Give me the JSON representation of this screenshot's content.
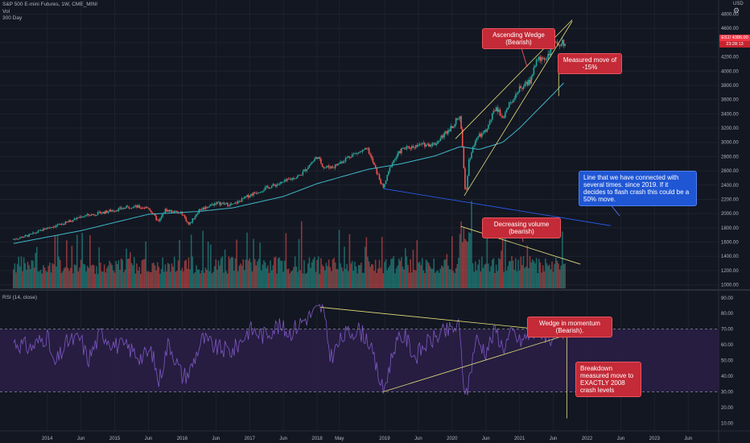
{
  "header": {
    "symbol_line": "S&P 500 E-mini Futures, 1W, CME_MINI",
    "volume_label": "Vol",
    "ma_label": "300 Day",
    "rsi_label": "RSI (14, close)"
  },
  "currency": "USD",
  "price_tag": {
    "symbol": "ES1!",
    "price": "4386.00",
    "countdown": "23:28:13"
  },
  "annotations": {
    "ascending_wedge": "Ascending Wedge (Bearish)",
    "measured_move": "Measured move of -15%",
    "trendline_note": "Line that we have connected with several times. since 2019. If it decides to flash crash this could be a 50% move.",
    "decreasing_volume": "Decreasing volume (bearish)",
    "wedge_momentum": "Wedge in momentum (Bearish).",
    "breakdown_note": "Breakdown measured move to EXACTLY 2008 crash levels"
  },
  "colors": {
    "background": "#131722",
    "up": "#26a69a",
    "down": "#ef5350",
    "ma": "#3fb8c8",
    "rsi_line": "#7e57c2",
    "rsi_band": "#2a1f47",
    "wedge_line": "#e6e07a",
    "support_line": "#2962ff"
  },
  "chart_data": [
    {
      "type": "candlestick",
      "series": [
        {
          "name": "S&P 500 E-mini Futures",
          "x": [
            2013.5,
            2013.75,
            2014.0,
            2014.25,
            2014.5,
            2014.75,
            2015.0,
            2015.25,
            2015.5,
            2015.65,
            2015.75,
            2016.0,
            2016.1,
            2016.25,
            2016.5,
            2016.75,
            2017.0,
            2017.25,
            2017.5,
            2017.75,
            2018.0,
            2018.1,
            2018.25,
            2018.5,
            2018.75,
            2018.98,
            2019.1,
            2019.25,
            2019.5,
            2019.75,
            2020.0,
            2020.12,
            2020.2,
            2020.25,
            2020.35,
            2020.5,
            2020.65,
            2020.75,
            2020.9,
            2021.0,
            2021.15,
            2021.25,
            2021.4,
            2021.5,
            2021.6,
            2021.68
          ],
          "values": [
            1640,
            1700,
            1800,
            1860,
            1960,
            2000,
            2050,
            2100,
            2080,
            1880,
            2050,
            2000,
            1840,
            2050,
            2150,
            2120,
            2260,
            2360,
            2440,
            2540,
            2800,
            2650,
            2660,
            2820,
            2900,
            2350,
            2700,
            2900,
            2960,
            2980,
            3230,
            3380,
            2250,
            2750,
            3050,
            3150,
            3500,
            3350,
            3620,
            3750,
            3850,
            4150,
            4200,
            4350,
            4400,
            4386
          ]
        }
      ],
      "moving_average": {
        "name": "300 Day",
        "x": [
          2013.5,
          2014.5,
          2015.5,
          2016.25,
          2016.75,
          2017.5,
          2018.0,
          2018.75,
          2019.25,
          2019.75,
          2020.12,
          2020.4,
          2020.75,
          2021.0,
          2021.25,
          2021.5,
          2021.68
        ],
        "values": [
          1580,
          1760,
          1990,
          2030,
          2080,
          2240,
          2420,
          2620,
          2700,
          2810,
          2940,
          2900,
          3000,
          3200,
          3440,
          3680,
          3860
        ]
      },
      "x_ticks": [
        {
          "v": 2014.0,
          "label": "2014"
        },
        {
          "v": 2014.5,
          "label": "Jun"
        },
        {
          "v": 2015.0,
          "label": "2015"
        },
        {
          "v": 2015.5,
          "label": "Jun"
        },
        {
          "v": 2016.0,
          "label": "2016"
        },
        {
          "v": 2016.5,
          "label": "Jun"
        },
        {
          "v": 2017.0,
          "label": "2017"
        },
        {
          "v": 2017.5,
          "label": "Jun"
        },
        {
          "v": 2018.0,
          "label": "2018"
        },
        {
          "v": 2018.33,
          "label": "May"
        },
        {
          "v": 2019.0,
          "label": "2019"
        },
        {
          "v": 2019.5,
          "label": "Jun"
        },
        {
          "v": 2020.0,
          "label": "2020"
        },
        {
          "v": 2020.5,
          "label": "Jun"
        },
        {
          "v": 2021.0,
          "label": "2021"
        },
        {
          "v": 2021.5,
          "label": "Jun"
        },
        {
          "v": 2022.0,
          "label": "2022"
        },
        {
          "v": 2022.5,
          "label": "Jun"
        },
        {
          "v": 2023.0,
          "label": "2023"
        },
        {
          "v": 2023.5,
          "label": "Jun"
        }
      ],
      "y_ticks": [
        1000,
        1200,
        1400,
        1600,
        1800,
        2000,
        2200,
        2400,
        2600,
        2800,
        3000,
        3200,
        3400,
        3600,
        3800,
        4000,
        4200,
        4400,
        4600,
        4800
      ],
      "y_tick_labels": [
        "1000.00",
        "1200.00",
        "1400.00",
        "1600.00",
        "1800.00",
        "2000.00",
        "2200.00",
        "2400.00",
        "2600.00",
        "2800.00",
        "3000.00",
        "3200.00",
        "3400.00",
        "3600.00",
        "3800.00",
        "4000.00",
        "4200.00",
        "4400.00",
        "4600.00",
        "4800.00"
      ],
      "ylim": [
        950,
        4840
      ],
      "xlim": [
        2013.3,
        2023.95
      ]
    },
    {
      "type": "line",
      "title": "RSI (14, close)",
      "series": [
        {
          "name": "RSI",
          "x": [
            2013.5,
            2013.75,
            2014.0,
            2014.1,
            2014.3,
            2014.5,
            2014.6,
            2014.8,
            2015.0,
            2015.2,
            2015.4,
            2015.55,
            2015.65,
            2015.8,
            2016.0,
            2016.1,
            2016.3,
            2016.5,
            2016.75,
            2017.0,
            2017.2,
            2017.4,
            2017.6,
            2017.8,
            2018.0,
            2018.08,
            2018.2,
            2018.4,
            2018.6,
            2018.75,
            2018.98,
            2019.15,
            2019.3,
            2019.45,
            2019.6,
            2019.8,
            2020.0,
            2020.1,
            2020.2,
            2020.35,
            2020.5,
            2020.65,
            2020.75,
            2020.9,
            2021.0,
            2021.15,
            2021.3,
            2021.45,
            2021.55,
            2021.68
          ],
          "values": [
            62,
            58,
            66,
            46,
            62,
            64,
            50,
            68,
            60,
            58,
            52,
            56,
            36,
            62,
            40,
            42,
            64,
            58,
            56,
            70,
            66,
            72,
            68,
            76,
            82,
            84,
            52,
            66,
            70,
            64,
            30,
            60,
            66,
            52,
            60,
            66,
            70,
            72,
            24,
            64,
            56,
            70,
            58,
            68,
            62,
            66,
            70,
            64,
            68,
            66
          ]
        }
      ],
      "overbought": 70,
      "oversold": 30,
      "y_ticks": [
        10,
        20,
        30,
        40,
        50,
        60,
        70,
        80,
        90
      ],
      "y_tick_labels": [
        "10.00",
        "20.00",
        "30.00",
        "40.00",
        "50.00",
        "60.00",
        "70.00",
        "80.00",
        "90.00"
      ],
      "ylim": [
        5,
        94
      ]
    }
  ]
}
